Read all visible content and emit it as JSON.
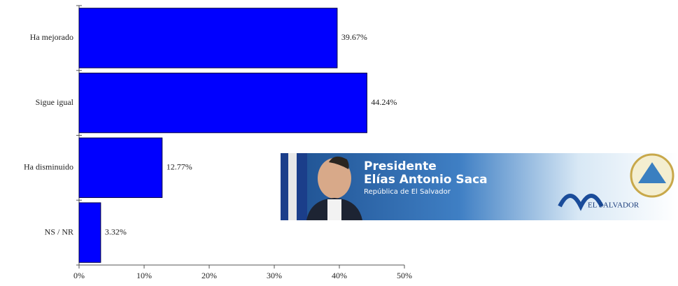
{
  "chart_data": {
    "type": "barh",
    "categories": [
      "Ha mejorado",
      "Sigue igual",
      "Ha disminuido",
      "NS / NR"
    ],
    "values": [
      39.67,
      44.24,
      12.77,
      3.32
    ],
    "value_labels": [
      "39.67%",
      "44.24%",
      "12.77%",
      "3.32%"
    ],
    "color": "#0000ff",
    "xlim": [
      0,
      50
    ],
    "xticks": [
      {
        "value": 0,
        "label": "0%"
      },
      {
        "value": 10,
        "label": "10%"
      },
      {
        "value": 20,
        "label": "20%"
      },
      {
        "value": 30,
        "label": "30%"
      },
      {
        "value": 40,
        "label": "40%"
      },
      {
        "value": 50,
        "label": "50%"
      }
    ]
  },
  "banner": {
    "line1": "Presidente",
    "line2": "Elías Antonio Saca",
    "line3": "República de El Salvador",
    "logo": "EL SALVADOR"
  }
}
